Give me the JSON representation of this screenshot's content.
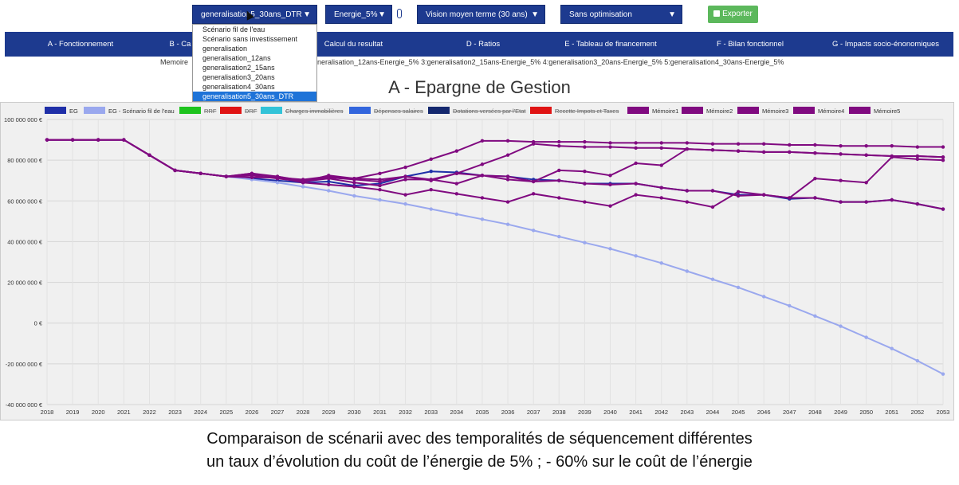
{
  "toolbar": {
    "scenario_select": "generalisation5_30ans_DTR",
    "energy_select": "Energie_5%",
    "vision_select": "Vision moyen terme (30 ans)",
    "optim_select": "Sans optimisation",
    "export_label": "Exporter"
  },
  "dropdown": {
    "options": [
      "Scénario fil de l'eau",
      "Scénario sans investissement",
      "generalisation",
      "generalisation_12ans",
      "generalisation2_15ans",
      "generalisation3_20ans",
      "generalisation4_30ans",
      "generalisation5_30ans_DTR"
    ],
    "selected_index": 7
  },
  "nav": {
    "tabs": [
      "A - Fonctionnement",
      "B - Ca",
      "Calcul du resultat",
      "D - Ratios",
      "E - Tableau de financement",
      "F - Bilan fonctionnel",
      "G - Impacts socio-énonomiques"
    ]
  },
  "memoire": {
    "prefix": "Memoire",
    "text": "neralisation_12ans-Energie_5% 3:generalisation2_15ans-Energie_5% 4:generalisation3_20ans-Energie_5% 5:generalisation4_30ans-Energie_5%"
  },
  "page_title": "A - Epargne de Gestion",
  "caption": {
    "line1": "Comparaison de scénarii avec des temporalités de séquencement différentes",
    "line2": "un taux d’évolution du coût de l’énergie de 5% ; - 60% sur le coût de l’énergie"
  },
  "colors": {
    "nav_bg": "#1d3a8f",
    "export_bg": "#5cb85c",
    "selected_option": "#1e73d8"
  },
  "chart_data": {
    "type": "line",
    "x": [
      2018,
      2019,
      2020,
      2021,
      2022,
      2023,
      2024,
      2025,
      2026,
      2027,
      2028,
      2029,
      2030,
      2031,
      2032,
      2033,
      2034,
      2035,
      2036,
      2037,
      2038,
      2039,
      2040,
      2041,
      2042,
      2043,
      2044,
      2045,
      2046,
      2047,
      2048,
      2049,
      2050,
      2051,
      2052,
      2053
    ],
    "y_ticks": [
      "-40 000 000 €",
      "-20 000 000 €",
      "0 €",
      "20 000 000 €",
      "40 000 000 €",
      "60 000 000 €",
      "80 000 000 €",
      "100 000 000 €"
    ],
    "ylim": [
      -40000000,
      100000000
    ],
    "grid": true,
    "legend_position": "top",
    "legend": [
      {
        "name": "EG",
        "color": "#1f2fa8",
        "hidden": false
      },
      {
        "name": "EG - Scénario fil de l'eau",
        "color": "#9aa8ee",
        "hidden": false
      },
      {
        "name": "RRF",
        "color": "#1ec31e",
        "hidden": true
      },
      {
        "name": "DRF",
        "color": "#e01414",
        "hidden": true
      },
      {
        "name": "Charges immobilières",
        "color": "#33c3d8",
        "hidden": true
      },
      {
        "name": "Dépenses salaires",
        "color": "#3366dd",
        "hidden": true
      },
      {
        "name": "Dotations versées par l'Etat",
        "color": "#14286e",
        "hidden": true
      },
      {
        "name": "Recette Impots et Taxes",
        "color": "#e01414",
        "hidden": true
      },
      {
        "name": "Mémoire1",
        "color": "#800a80",
        "hidden": false
      },
      {
        "name": "Mémoire2",
        "color": "#800a80",
        "hidden": false
      },
      {
        "name": "Mémoire3",
        "color": "#800a80",
        "hidden": false
      },
      {
        "name": "Mémoire4",
        "color": "#800a80",
        "hidden": false
      },
      {
        "name": "Mémoire5",
        "color": "#800a80",
        "hidden": false
      }
    ],
    "series": [
      {
        "name": "EG",
        "color": "#1f2fa8",
        "values": [
          90000000,
          90000000,
          90000000,
          90000000,
          82500000,
          75000000,
          73500000,
          72000000,
          71000000,
          70000000,
          69000000,
          69500000,
          67500000,
          68500000,
          72000000,
          74500000,
          74000000,
          72500000,
          72000000,
          70500000,
          70000000,
          68500000,
          68500000,
          68500000,
          66500000,
          65000000,
          65000000,
          63000000,
          63000000,
          61000000,
          61500000,
          59500000,
          59500000,
          60500000,
          58500000,
          56000000
        ]
      },
      {
        "name": "EG - Scénario fil de l'eau",
        "color": "#9aa8ee",
        "values": [
          90000000,
          90000000,
          90000000,
          90000000,
          82500000,
          75000000,
          73500000,
          72000000,
          70500000,
          69000000,
          67000000,
          65000000,
          62500000,
          60500000,
          58500000,
          56000000,
          53500000,
          51000000,
          48500000,
          45500000,
          42500000,
          39500000,
          36500000,
          33000000,
          29500000,
          25500000,
          21500000,
          17500000,
          13000000,
          8500000,
          3500000,
          -1500000,
          -7000000,
          -12500000,
          -18500000,
          -25000000
        ]
      },
      {
        "name": "Mémoire1",
        "color": "#800a80",
        "values": [
          90000000,
          90000000,
          90000000,
          90000000,
          82500000,
          75000000,
          73500000,
          72000000,
          71500000,
          71500000,
          70500000,
          72000000,
          71000000,
          73500000,
          76500000,
          80500000,
          84500000,
          89500000,
          89500000,
          89000000,
          89000000,
          89000000,
          88500000,
          88500000,
          88500000,
          88500000,
          88000000,
          88000000,
          88000000,
          87500000,
          87500000,
          87000000,
          87000000,
          87000000,
          86500000,
          86500000
        ]
      },
      {
        "name": "Mémoire2",
        "color": "#800a80",
        "values": [
          90000000,
          90000000,
          90000000,
          90000000,
          82500000,
          75000000,
          73500000,
          72000000,
          73500000,
          72000000,
          69500000,
          72500000,
          71000000,
          70500000,
          72000000,
          70000000,
          73500000,
          78000000,
          82500000,
          88000000,
          87000000,
          86500000,
          86500000,
          86000000,
          86000000,
          85500000,
          85000000,
          84500000,
          84000000,
          84000000,
          83500000,
          83000000,
          82500000,
          82000000,
          82000000,
          81500000
        ]
      },
      {
        "name": "Mémoire3",
        "color": "#800a80",
        "values": [
          90000000,
          90000000,
          90000000,
          90000000,
          82500000,
          75000000,
          73500000,
          72000000,
          73500000,
          71500000,
          69000000,
          68000000,
          67000000,
          65500000,
          63000000,
          65500000,
          63500000,
          61500000,
          59500000,
          63500000,
          61500000,
          59500000,
          57500000,
          63000000,
          61500000,
          59500000,
          57000000,
          64500000,
          63000000,
          61500000,
          71000000,
          70000000,
          69000000,
          81500000,
          80500000,
          80000000
        ]
      },
      {
        "name": "Mémoire4",
        "color": "#800a80",
        "values": [
          90000000,
          90000000,
          90000000,
          90000000,
          82500000,
          75000000,
          73500000,
          72000000,
          72500000,
          71000000,
          69500000,
          71000000,
          69000000,
          67500000,
          70500000,
          70500000,
          68500000,
          72500000,
          70500000,
          69500000,
          75000000,
          74500000,
          72500000,
          78500000,
          77500000,
          85500000,
          85000000,
          84500000,
          84000000,
          84000000,
          83500000,
          83000000,
          82500000,
          82000000,
          82000000,
          81500000
        ]
      },
      {
        "name": "Mémoire5",
        "color": "#800a80",
        "values": [
          90000000,
          90000000,
          90000000,
          90000000,
          82500000,
          75000000,
          73500000,
          72000000,
          73000000,
          72000000,
          70000000,
          71500000,
          70500000,
          69500000,
          72000000,
          70500000,
          73500000,
          72500000,
          72000000,
          69500000,
          70000000,
          68500000,
          68000000,
          68500000,
          66500000,
          65000000,
          65000000,
          62500000,
          63000000,
          61500000,
          61500000,
          59500000,
          59500000,
          60500000,
          58500000,
          56000000
        ]
      }
    ]
  }
}
